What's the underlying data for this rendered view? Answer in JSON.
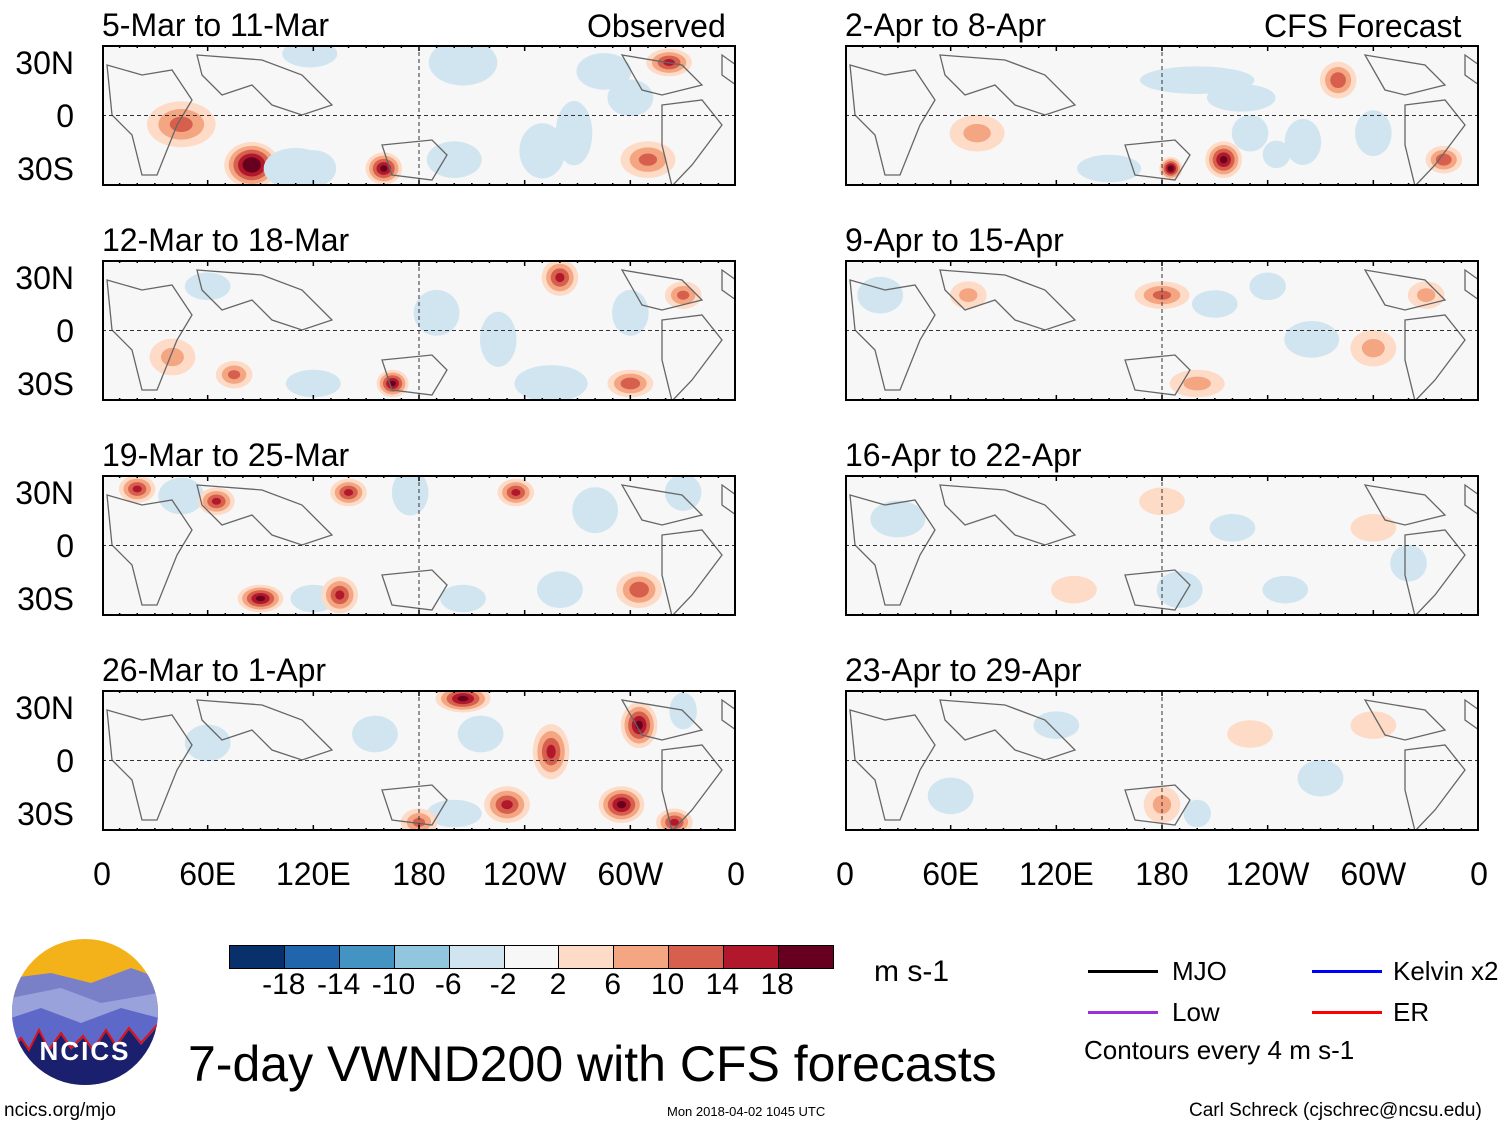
{
  "chart_data": {
    "type": "heatmap",
    "title": "7-day VWND200 with CFS forecasts",
    "variable": "VWND200",
    "units": "m s-1",
    "columns": [
      {
        "heading": "Observed",
        "panels": [
          "5-Mar to 11-Mar",
          "12-Mar to 18-Mar",
          "19-Mar to 25-Mar",
          "26-Mar to 1-Apr"
        ]
      },
      {
        "heading": "CFS Forecast",
        "panels": [
          "2-Apr to 8-Apr",
          "9-Apr to 15-Apr",
          "16-Apr to 22-Apr",
          "23-Apr to 29-Apr"
        ]
      }
    ],
    "lat_ticks": [
      "30N",
      "0",
      "30S"
    ],
    "lon_ticks": [
      "0",
      "60E",
      "120E",
      "180",
      "120W",
      "60W",
      "0"
    ],
    "colorbar": {
      "levels": [
        "-18",
        "-14",
        "-10",
        "-6",
        "-2",
        "2",
        "6",
        "10",
        "14",
        "18"
      ],
      "colors": [
        "#08306b",
        "#2166ac",
        "#4393c3",
        "#92c5de",
        "#d1e5f0",
        "#f7f7f7",
        "#fddbc7",
        "#f4a582",
        "#d6604d",
        "#b2182b",
        "#67001f"
      ]
    },
    "legend": [
      {
        "label": "MJO",
        "color": "#000000"
      },
      {
        "label": "Kelvin x2",
        "color": "#0000ff"
      },
      {
        "label": "Low",
        "color": "#9b30d9"
      },
      {
        "label": "ER",
        "color": "#ff0000"
      }
    ],
    "contour_note": "Contours every 4 m s-1"
  },
  "footer": {
    "logo_text": "NCICS",
    "url": "ncics.org/mjo",
    "timestamp": "Mon 2018-04-02 1045 UTC",
    "author": "Carl Schreck (cjschrec@ncsu.edu)"
  }
}
